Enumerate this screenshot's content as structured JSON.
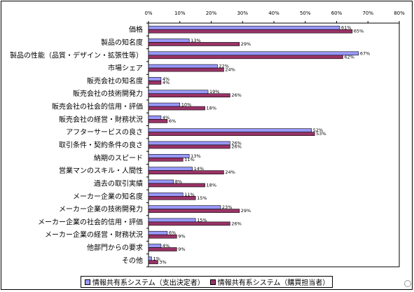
{
  "chart_data": {
    "type": "bar",
    "orientation": "horizontal",
    "title": "",
    "xlabel": "",
    "ylabel": "",
    "xlim": [
      0,
      80
    ],
    "x_ticks": [
      "0%",
      "10%",
      "20%",
      "30%",
      "40%",
      "50%",
      "60%",
      "70%",
      "80%"
    ],
    "grid": false,
    "legend_position": "bottom",
    "categories": [
      "価格",
      "製品の知名度",
      "製品の性能（品質・デザイン・拡張性等）",
      "市場シェア",
      "販売会社の知名度",
      "販売会社の技術開発力",
      "販売会社の社会的信用・評価",
      "販売会社の経営・財務状況",
      "アフターサービスの良さ",
      "取引条件・契約条件の良さ",
      "納期のスピード",
      "営業マンのスキル・人間性",
      "過去の取引実績",
      "メーカー企業の知名度",
      "メーカー企業の技術開発力",
      "メーカー企業の社会的信用・評価",
      "メーカー企業の経営・財務状況",
      "他部門からの要求",
      "その他"
    ],
    "series": [
      {
        "name": "情報共有系システム（支出決定者）",
        "color": "#9999ff",
        "values": [
          61,
          13,
          67,
          22,
          4,
          19,
          10,
          4,
          52,
          26,
          13,
          14,
          8,
          11,
          23,
          15,
          6,
          4,
          1
        ],
        "labels": [
          "61%",
          "13%",
          "67%",
          "22%",
          "4%",
          "19%",
          "10%",
          "4%",
          "52%",
          "26%",
          "13%",
          "14%",
          "8%",
          "11%",
          "23%",
          "15%",
          "6%",
          "4%",
          "1%"
        ]
      },
      {
        "name": "情報共有系システム（購買担当者）",
        "color": "#993366",
        "values": [
          65,
          29,
          62,
          24,
          4,
          26,
          18,
          6,
          53,
          26,
          11,
          24,
          18,
          15,
          29,
          26,
          9,
          9,
          3
        ],
        "labels": [
          "65%",
          "29%",
          "62%",
          "24%",
          "4%",
          "26%",
          "18%",
          "6%",
          "53%",
          "26%",
          "11%",
          "24%",
          "18%",
          "15%",
          "29%",
          "26%",
          "9%",
          "9%",
          "3%"
        ]
      }
    ]
  }
}
